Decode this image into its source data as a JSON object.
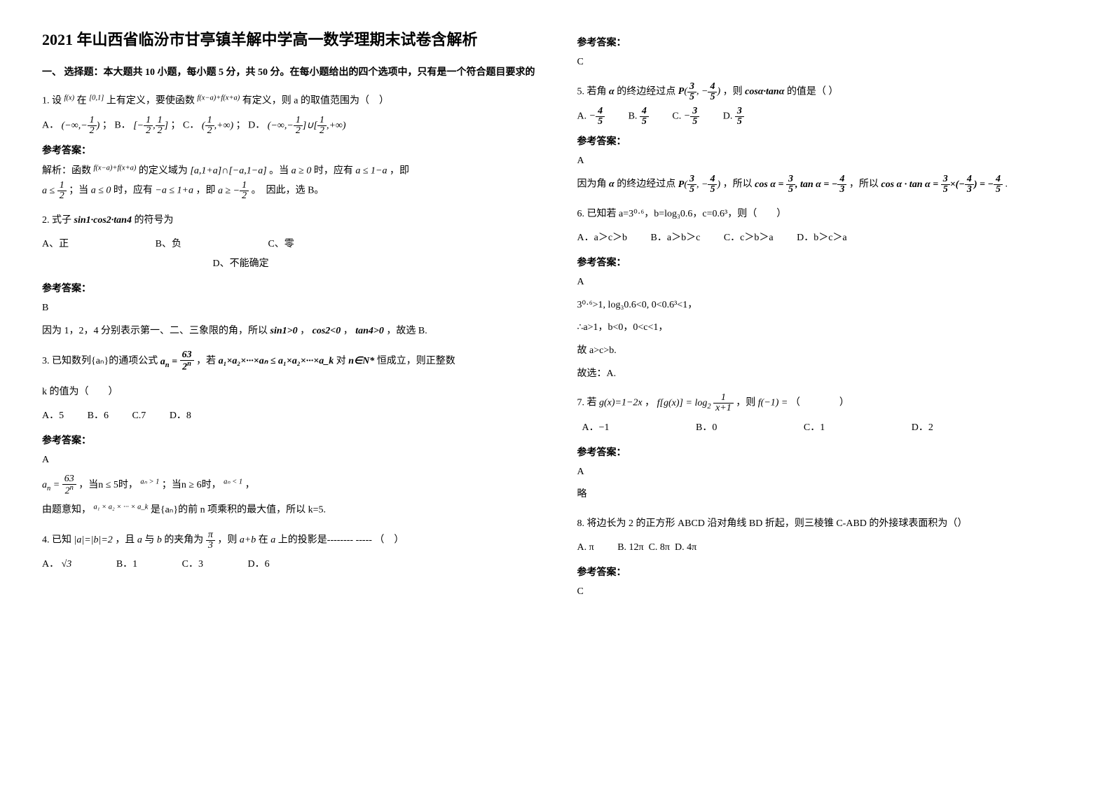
{
  "doc": {
    "title": "2021 年山西省临汾市甘亭镇羊解中学高一数学理期末试卷含解析",
    "section1_intro": "一、 选择题：本大题共 10 小题，每小题 5 分，共 50 分。在每小题给出的四个选项中，只有是一个符合题目要求的",
    "refAnsLabel": "参考答案：",
    "q1": {
      "stem_a": "1. 设",
      "stem_b": "在",
      "stem_c": "上有定义，要使函数",
      "stem_d": "有定义，则 a 的取值范围为（　）",
      "fx": "f(x)",
      "interval": "[0,1]",
      "comp": "f(x−a)+f(x+a)",
      "optA_pre": "A．",
      "optB_pre": "；  B．",
      "optC_pre": "；  C．",
      "optD_pre": "；  D．",
      "ans": "解析：函数",
      "ans2": "的定义域为",
      "ans3": "。当",
      "ans4": "时，应有",
      "ans5": "，即",
      "ans6": "；当",
      "ans7": "时，应有",
      "ans8": "，即",
      "ans9": "。　因此，选 B。",
      "dom": "[a,1+a]∩[−a,1−a]",
      "c1": "a ≥ 0",
      "c2": "a ≤ 1−a",
      "c3": "a ≤ 0",
      "c4": "−a ≤ 1+a"
    },
    "q2": {
      "stem": "2. 式子",
      "expr": "sin1·cos2·tan4",
      "tail": "的符号为",
      "A": "A、正",
      "B": "B、负",
      "C": "C、零",
      "D": "D、不能确定",
      "ans": "B",
      "exp_a": "因为 1，2，4 分别表示第一、二、三象限的角，所以",
      "exp_b": "，",
      "exp_c": "，",
      "exp_d": "，故选 B.",
      "e1": "sin1>0",
      "e2": "cos2<0",
      "e3": "tan4>0"
    },
    "q3": {
      "stem_a": "3. 已知数列{aₙ}的通项公式",
      "stem_b": "，若",
      "stem_c": "对",
      "stem_d": "恒成立，则正整数",
      "kline": "k 的值为（　　）",
      "ineq": "a₁×a₂×···×aₙ ≤ a₁×a₂×···×a_k",
      "nset": "n∈N*",
      "optA": "A．5",
      "optB": "B．6",
      "optC": "C.7",
      "optD": "D．8",
      "ans": "A",
      "exp1": "，当n ≤ 5时，",
      "exp1b": "；当n ≥ 6时，",
      "exp1c": "，",
      "an_gt1": "aₙ > 1",
      "an_lt1": "aₙ < 1",
      "exp2_a": "由题意知，",
      "exp2_b": "是{aₙ}的前 n 项乘积的最大值，所以 k=5.",
      "prod": "a₁ × a₂ × ··· × a_k"
    },
    "q4": {
      "stem_a": "4. 已知",
      "stem_b": "，且",
      "stem_c": "与",
      "stem_d": "的夹角为",
      "stem_e": "，则",
      "stem_f": "在",
      "stem_g": "上的投影是-------- ----- （　）",
      "eq": "|a|=|b|=2",
      "av": "a",
      "bv": "b",
      "ab": "a+b",
      "optA": "A．",
      "optAval": "√3",
      "optB": "B．1",
      "optC": "C．3",
      "optD": "D．6",
      "ans": "C"
    },
    "q5": {
      "stem_a": "5. 若角",
      "stem_b": "的终边经过点",
      "stem_c": "，则",
      "stem_d": "的值是（ ）",
      "alpha": "α",
      "expr": "cosα·tanα",
      "optA": "A.",
      "optB": "B.",
      "optC": "C.",
      "optD": "D.",
      "ans": "A",
      "exp_a": "因为角",
      "exp_b": "的终边经过点",
      "exp_c": "，所以",
      "exp_d": "，所以",
      "exp_e": ".",
      "ctan1": "cosα = 3/5, tanα = −4/3",
      "ctan2": "cosα·tanα = (3/5)×(−4/3) = −4/5"
    },
    "q6": {
      "stem": "6. 已知若 a=3⁰·⁶，b=log₃0.6，c=0.6³，则（　　）",
      "optA": "A．a＞c＞b",
      "optB": "B．a＞b＞c",
      "optC": "C．c＞b＞a",
      "optD": "D．b＞c＞a",
      "ans": "A",
      "l1": "3⁰·⁶>1, log₃0.6<0, 0<0.6³<1，",
      "l2": "∴a>1，b<0，0<c<1，",
      "l3": "故 a>c>b.",
      "l4": "故选：A."
    },
    "q7": {
      "stem_a": "7. 若",
      "stem_b": "，",
      "stem_c": "，则",
      "stem_d": "（　　　　）",
      "g": "g(x)=1−2x",
      "fg": "f[g(x)]=log₂ 1/(x+1)",
      "fneg1": "f(−1) = ",
      "optA": "A．−1",
      "optB": "B．0",
      "optC": "C．1",
      "optD": "D．2",
      "ans": "A",
      "exp": "略"
    },
    "q8": {
      "stem": "8. 将边长为 2 的正方形 ABCD 沿对角线 BD 折起，则三棱锥 C-ABD 的外接球表面积为（）",
      "optA": "A. π",
      "optB": "B. 12π",
      "optC": "C. 8π",
      "optD": "D. 4π",
      "ans": "C"
    }
  }
}
